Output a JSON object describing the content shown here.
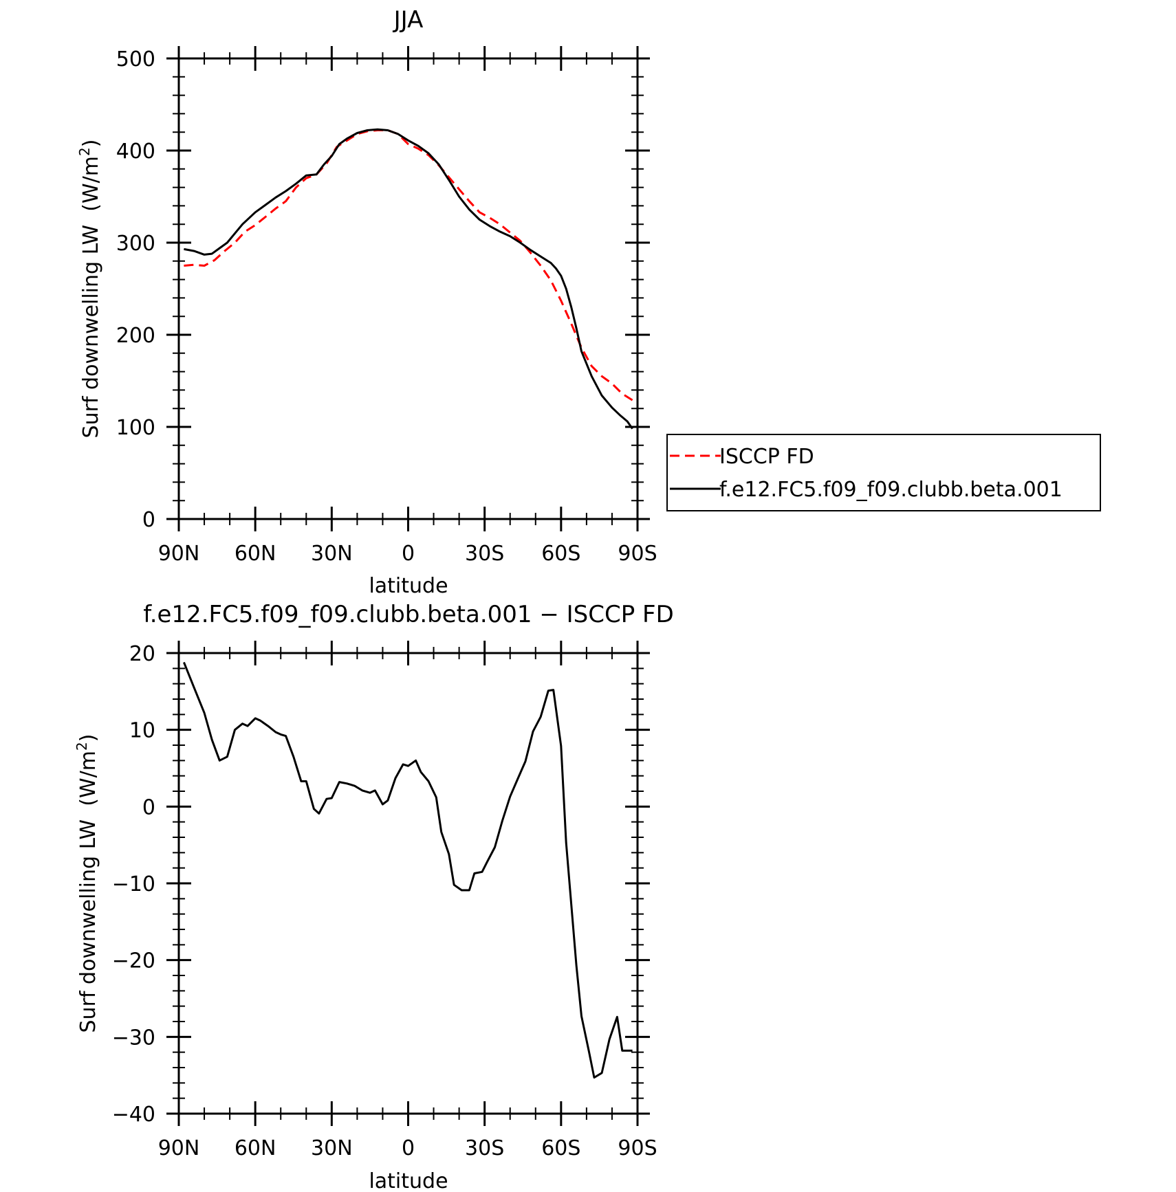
{
  "chart_data": [
    {
      "type": "line",
      "title": "JJA",
      "xlabel": "latitude",
      "ylabel": "Surf downwelling LW",
      "ylabel_unit_base": "(W/m",
      "ylabel_unit_sup": "2",
      "ylabel_unit_close": ")",
      "xlim": [
        -90,
        90
      ],
      "ylim": [
        0,
        500
      ],
      "xticks": [
        {
          "value": -90,
          "label": "90N"
        },
        {
          "value": -60,
          "label": "60N"
        },
        {
          "value": -30,
          "label": "30N"
        },
        {
          "value": 0,
          "label": "0"
        },
        {
          "value": 30,
          "label": "30S"
        },
        {
          "value": 60,
          "label": "60S"
        },
        {
          "value": 90,
          "label": "90S"
        }
      ],
      "yticks": [
        {
          "value": 0,
          "label": "0"
        },
        {
          "value": 100,
          "label": "100"
        },
        {
          "value": 200,
          "label": "200"
        },
        {
          "value": 300,
          "label": "300"
        },
        {
          "value": 400,
          "label": "400"
        },
        {
          "value": 500,
          "label": "500"
        }
      ],
      "grid": false,
      "legend_position": "right",
      "series": [
        {
          "name": "ISCCP FD",
          "color": "#ff0000",
          "dash": "dashed",
          "x": [
            -88,
            -84,
            -80,
            -76,
            -72,
            -68,
            -64,
            -60,
            -56,
            -52,
            -48,
            -44,
            -40,
            -36,
            -32,
            -28,
            -24,
            -20,
            -16,
            -12,
            -8,
            -4,
            0,
            4,
            8,
            12,
            16,
            20,
            24,
            28,
            32,
            36,
            40,
            44,
            48,
            52,
            56,
            60,
            64,
            68,
            72,
            76,
            80,
            84,
            88
          ],
          "values": [
            275,
            276,
            275,
            281,
            291,
            300,
            312,
            319,
            328,
            337,
            345,
            360,
            370,
            374,
            386,
            404,
            411,
            418,
            421,
            422,
            422,
            418,
            407,
            402,
            395,
            384,
            371,
            358,
            345,
            333,
            327,
            320,
            311,
            302,
            289,
            275,
            259,
            237,
            212,
            186,
            166,
            155,
            147,
            136,
            129
          ]
        },
        {
          "name": "f.e12.FC5.f09_f09.clubb.beta.001",
          "color": "#000000",
          "dash": "solid",
          "x": [
            -88,
            -84,
            -80,
            -77,
            -74,
            -71,
            -68,
            -65,
            -60,
            -56,
            -52,
            -48,
            -44,
            -40,
            -36,
            -33,
            -30,
            -27,
            -24,
            -20,
            -16,
            -12,
            -8,
            -4,
            0,
            4,
            8,
            12,
            16,
            20,
            24,
            28,
            32,
            36,
            40,
            44,
            48,
            52,
            56,
            58,
            60,
            62,
            64,
            66,
            68,
            72,
            76,
            80,
            83,
            86,
            88
          ],
          "values": [
            293,
            291,
            287,
            288,
            294,
            300,
            310,
            320,
            333,
            341,
            349,
            356,
            364,
            373,
            374,
            385,
            394,
            407,
            413,
            419,
            422,
            423,
            422,
            418,
            411,
            405,
            397,
            385,
            368,
            350,
            336,
            325,
            318,
            312,
            307,
            300,
            292,
            285,
            278,
            272,
            264,
            250,
            230,
            207,
            182,
            155,
            134,
            121,
            113,
            106,
            98
          ]
        }
      ]
    },
    {
      "type": "line",
      "title": "f.e12.FC5.f09_f09.clubb.beta.001 − ISCCP FD",
      "xlabel": "latitude",
      "ylabel": "Surf downwelling LW",
      "ylabel_unit_base": "(W/m",
      "ylabel_unit_sup": "2",
      "ylabel_unit_close": ")",
      "xlim": [
        -90,
        90
      ],
      "ylim": [
        -40,
        20
      ],
      "xticks": [
        {
          "value": -90,
          "label": "90N"
        },
        {
          "value": -60,
          "label": "60N"
        },
        {
          "value": -30,
          "label": "30N"
        },
        {
          "value": 0,
          "label": "0"
        },
        {
          "value": 30,
          "label": "30S"
        },
        {
          "value": 60,
          "label": "60S"
        },
        {
          "value": 90,
          "label": "90S"
        }
      ],
      "yticks": [
        {
          "value": -40,
          "label": "−40"
        },
        {
          "value": -30,
          "label": "−30"
        },
        {
          "value": -20,
          "label": "−20"
        },
        {
          "value": -10,
          "label": "−10"
        },
        {
          "value": 0,
          "label": "0"
        },
        {
          "value": 10,
          "label": "10"
        },
        {
          "value": 20,
          "label": "20"
        }
      ],
      "grid": false,
      "series": [
        {
          "color": "#000000",
          "dash": "solid",
          "x": [
            -88,
            -84,
            -80,
            -77,
            -74,
            -71,
            -68,
            -65,
            -63,
            -60,
            -58,
            -55,
            -52,
            -50,
            -48,
            -45,
            -42,
            -40,
            -37,
            -35,
            -32,
            -30,
            -27,
            -24,
            -21,
            -18,
            -15,
            -13,
            -10,
            -8,
            -5,
            -2,
            0,
            3,
            5,
            8,
            11,
            13,
            16,
            18,
            21,
            24,
            26,
            29,
            31,
            34,
            37,
            40,
            43,
            46,
            49,
            52,
            55,
            57,
            60,
            62,
            66,
            68,
            71,
            73,
            76,
            79,
            82,
            84,
            86,
            88
          ],
          "values": [
            18.8,
            15.5,
            12.2,
            8.7,
            6.0,
            6.5,
            10.0,
            10.8,
            10.5,
            11.5,
            11.2,
            10.5,
            9.7,
            9.4,
            9.2,
            6.5,
            3.3,
            3.3,
            -0.3,
            -0.9,
            1.0,
            1.1,
            3.2,
            3.0,
            2.7,
            2.1,
            1.8,
            2.1,
            0.3,
            0.8,
            3.7,
            5.5,
            5.3,
            6.0,
            4.5,
            3.3,
            1.2,
            -3.3,
            -6.2,
            -10.2,
            -10.9,
            -10.9,
            -8.7,
            -8.5,
            -7.2,
            -5.3,
            -1.8,
            1.3,
            3.6,
            5.9,
            9.8,
            11.7,
            15.1,
            15.2,
            7.9,
            -4.7,
            -20.7,
            -27.3,
            -32.0,
            -35.3,
            -34.7,
            -30.3,
            -27.4,
            -31.8,
            -31.8,
            -31.8
          ]
        }
      ]
    }
  ]
}
